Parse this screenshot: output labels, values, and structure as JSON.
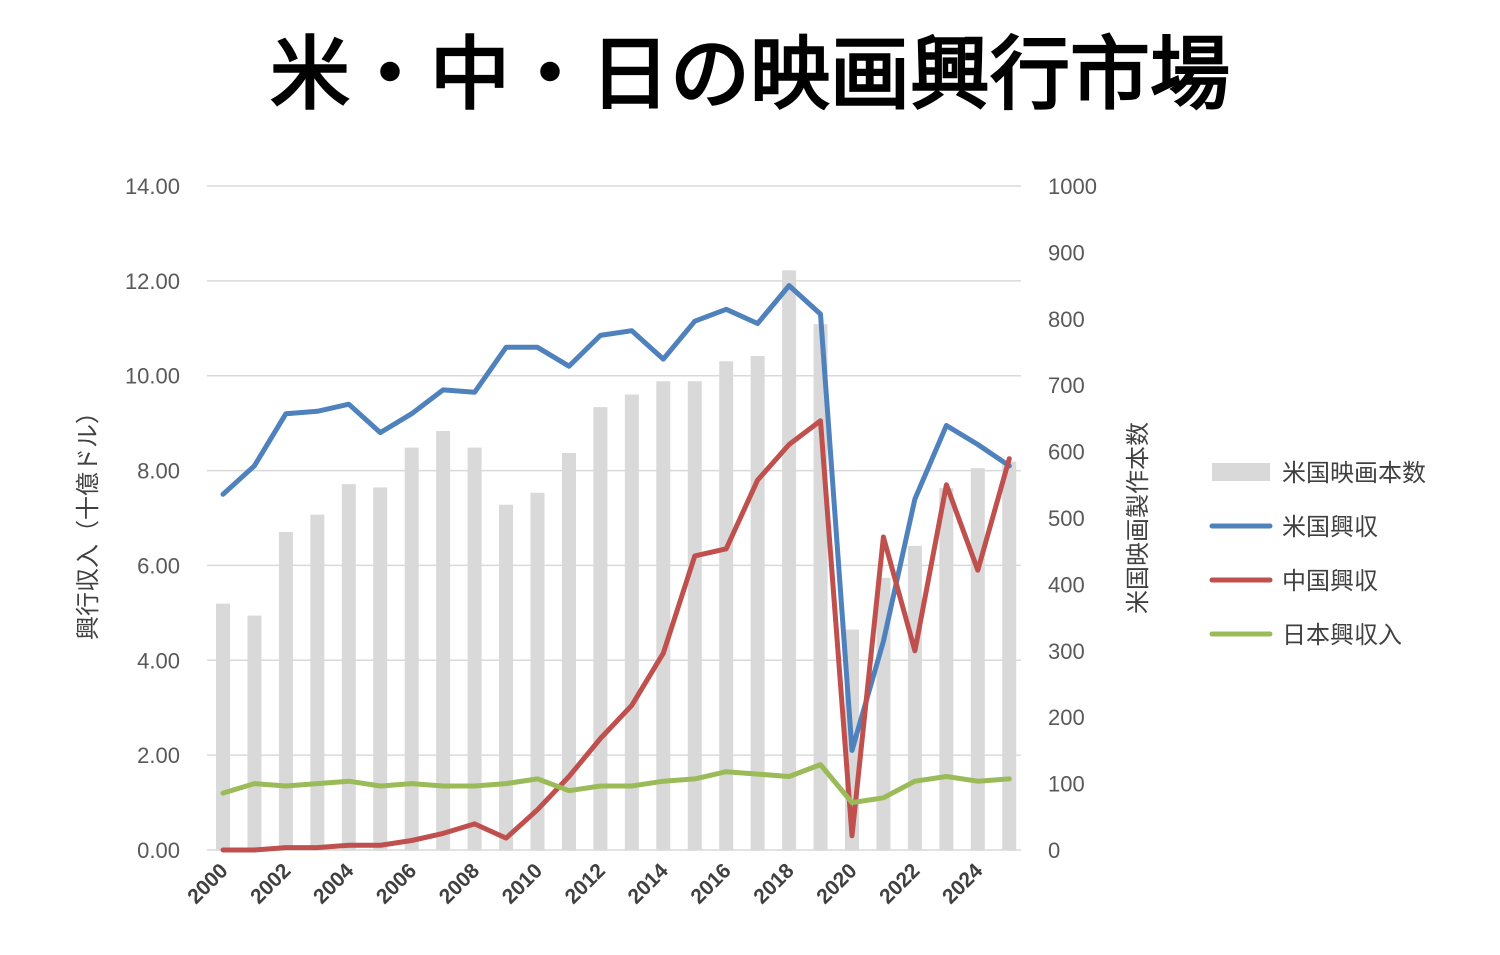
{
  "chart_data": {
    "type": "bar+line",
    "title": "米・中・日の映画興行市場",
    "x": [
      2000,
      2001,
      2002,
      2003,
      2004,
      2005,
      2006,
      2007,
      2008,
      2009,
      2010,
      2011,
      2012,
      2013,
      2014,
      2015,
      2016,
      2017,
      2018,
      2019,
      2020,
      2021,
      2022,
      2023,
      2024,
      2025
    ],
    "x_tick_labels": [
      "2000",
      "2002",
      "2004",
      "2006",
      "2008",
      "2010",
      "2012",
      "2014",
      "2016",
      "2018",
      "2020",
      "2022",
      "2024"
    ],
    "ylabel_left": "興行収入（十億ドル）",
    "ylabel_right": "米国映画製作本数",
    "ylim_left": [
      0,
      14
    ],
    "ylim_right": [
      0,
      1000
    ],
    "y_ticks_left": [
      "0.00",
      "2.00",
      "4.00",
      "6.00",
      "8.00",
      "10.00",
      "12.00",
      "14.00"
    ],
    "y_ticks_right": [
      "0",
      "100",
      "200",
      "300",
      "400",
      "500",
      "600",
      "700",
      "800",
      "900",
      "1000"
    ],
    "grid": true,
    "legend_position": "right",
    "series": [
      {
        "name": "米国映画本数",
        "kind": "bar",
        "axis": "right",
        "color": "#d9d9d9",
        "values": [
          371,
          353,
          479,
          505,
          551,
          546,
          606,
          631,
          606,
          520,
          538,
          598,
          667,
          686,
          706,
          706,
          736,
          744,
          873,
          792,
          332,
          410,
          458,
          545,
          575,
          585
        ]
      },
      {
        "name": "米国興収",
        "kind": "line",
        "axis": "left",
        "color": "#4f81bd",
        "values": [
          7.5,
          8.1,
          9.2,
          9.25,
          9.4,
          8.8,
          9.2,
          9.7,
          9.65,
          10.6,
          10.6,
          10.2,
          10.85,
          10.95,
          10.35,
          11.15,
          11.4,
          11.1,
          11.9,
          11.3,
          2.1,
          4.4,
          7.4,
          8.95,
          8.55,
          8.1
        ]
      },
      {
        "name": "中国興収",
        "kind": "line",
        "axis": "left",
        "color": "#c0504d",
        "values": [
          0.0,
          0.0,
          0.05,
          0.05,
          0.1,
          0.1,
          0.2,
          0.35,
          0.55,
          0.25,
          0.85,
          1.55,
          2.35,
          3.05,
          4.15,
          6.2,
          6.35,
          7.8,
          8.55,
          9.05,
          0.3,
          6.6,
          4.2,
          7.7,
          5.9,
          8.25
        ]
      },
      {
        "name": "日本興収入",
        "kind": "line",
        "axis": "left",
        "color": "#9bbb59",
        "values": [
          1.2,
          1.4,
          1.35,
          1.4,
          1.45,
          1.35,
          1.4,
          1.35,
          1.35,
          1.4,
          1.5,
          1.25,
          1.35,
          1.35,
          1.45,
          1.5,
          1.65,
          1.6,
          1.55,
          1.8,
          1.0,
          1.1,
          1.45,
          1.55,
          1.45,
          1.5
        ]
      }
    ]
  }
}
